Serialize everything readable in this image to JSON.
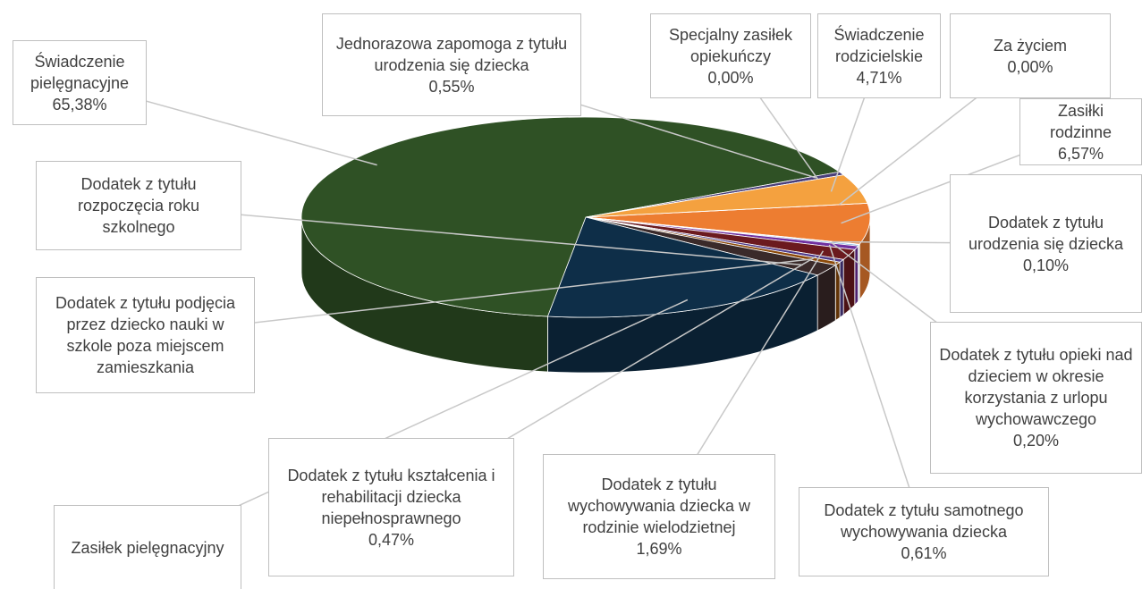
{
  "chart_data": {
    "type": "pie",
    "categories": [
      "Zasiłki rodzinne",
      "Dodatek z tytułu urodzenia się dziecka",
      "Dodatek z tytułu opieki nad dzieciem w okresie korzystania z urlopu wychowawczego",
      "Dodatek z tytułu samotnego wychowywania dziecka",
      "Dodatek z tytułu wychowywania dziecka w rodzinie wielodzietnej",
      "Dodatek z tytułu kształcenia i rehabilitacji dziecka niepełnosprawnego",
      "Dodatek z tytułu podjęcia przez dziecko nauki w szkole poza miejscem zamieszkania",
      "Dodatek z tytułu rozpoczęcia roku szkolnego",
      "Zasiłek pielęgnacyjny",
      "Świadczenie pielęgnacyjne",
      "Jednorazowa zapomoga z tytułu urodzenia się dziecka",
      "Specjalny zasiłek opiekuńczy",
      "Świadczenie rodzicielskie",
      "Za życiem"
    ],
    "values": [
      6.57,
      0.1,
      0.2,
      0.61,
      1.69,
      0.47,
      0.52,
      1.9,
      17.3,
      65.38,
      0.55,
      0.0,
      4.71,
      0.0
    ],
    "value_labels": [
      "6,57%",
      "0,10%",
      "0,20%",
      "0,61%",
      "1,69%",
      "0,47%",
      null,
      null,
      null,
      "65,38%",
      "0,55%",
      "0,00%",
      "4,71%",
      "0,00%"
    ],
    "colors": [
      "#ed7d31",
      "#70ad47",
      "#5b9bd5",
      "#7030a0",
      "#6b1a1f",
      "#4e3b8a",
      "#8c4a0a",
      "#3a2a2a",
      "#0e2e48",
      "#2f5125",
      "#4a3f7a",
      "#999999",
      "#f4a13f",
      "#c55a11"
    ]
  }
}
